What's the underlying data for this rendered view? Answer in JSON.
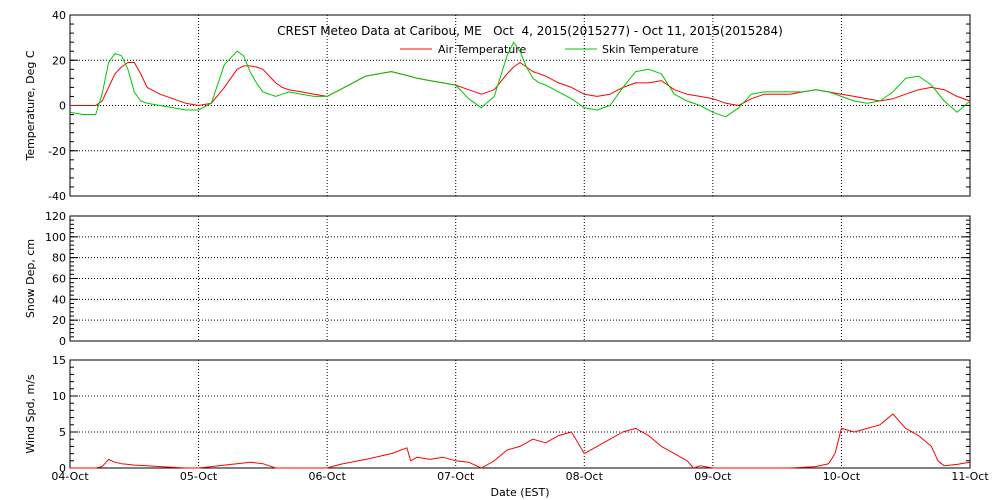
{
  "chart_data": [
    {
      "type": "line",
      "title": "CREST Meteo Data at Caribou, ME   Oct  4, 2015(2015277) - Oct 11, 2015(2015284)",
      "xlabel": "",
      "ylabel": "Temperature, Deg C",
      "ylim": [
        -40,
        40
      ],
      "yticks": [
        "-40",
        "-20",
        "0",
        "20",
        "40"
      ],
      "grid": true,
      "legend": "top-center",
      "series": [
        {
          "name": "Air Temperature",
          "color": "#ff0000",
          "x": [
            0,
            0.1,
            0.2,
            0.25,
            0.3,
            0.35,
            0.4,
            0.45,
            0.5,
            0.55,
            0.6,
            0.7,
            0.8,
            0.9,
            1.0,
            1.1,
            1.2,
            1.3,
            1.35,
            1.4,
            1.45,
            1.5,
            1.55,
            1.6,
            1.65,
            1.7,
            1.8,
            1.9,
            2.0,
            2.1,
            2.2,
            2.3,
            2.5,
            2.64,
            2.7,
            2.8,
            2.9,
            3.0,
            3.1,
            3.2,
            3.3,
            3.4,
            3.45,
            3.5,
            3.55,
            3.6,
            3.65,
            3.7,
            3.8,
            3.9,
            4.0,
            4.1,
            4.2,
            4.3,
            4.4,
            4.5,
            4.6,
            4.7,
            4.8,
            4.9,
            5.0,
            5.1,
            5.2,
            5.3,
            5.4,
            5.5,
            5.6,
            5.7,
            5.8,
            5.9,
            6.0,
            6.1,
            6.2,
            6.3,
            6.4,
            6.5,
            6.6,
            6.7,
            6.8,
            6.9,
            7.0
          ],
          "y": [
            0,
            0,
            0,
            2,
            8,
            14,
            17,
            19,
            19,
            14,
            8,
            5,
            3,
            1,
            0,
            1,
            8,
            16,
            17.5,
            17.5,
            17,
            16,
            13,
            10,
            8,
            7,
            6,
            5,
            4,
            7,
            10,
            13,
            15,
            13,
            12,
            11,
            10,
            9,
            7,
            5,
            7,
            14,
            17,
            19,
            17,
            15,
            14,
            13,
            10,
            8,
            5,
            4,
            5,
            8,
            10,
            10,
            11,
            7,
            5,
            4,
            3,
            1,
            0,
            3,
            5,
            5,
            5,
            6,
            7,
            6,
            5,
            4,
            3,
            2,
            3,
            5,
            7,
            8,
            7,
            4,
            2
          ]
        },
        {
          "name": "Skin Temperature",
          "color": "#00c800",
          "x": [
            0,
            0.1,
            0.2,
            0.25,
            0.3,
            0.35,
            0.4,
            0.45,
            0.5,
            0.55,
            0.6,
            0.7,
            0.8,
            0.9,
            1.0,
            1.1,
            1.2,
            1.3,
            1.35,
            1.4,
            1.45,
            1.5,
            1.55,
            1.6,
            1.65,
            1.7,
            1.8,
            1.9,
            2.0,
            2.1,
            2.2,
            2.3,
            2.5,
            2.64,
            2.7,
            2.8,
            2.9,
            3.0,
            3.1,
            3.2,
            3.3,
            3.4,
            3.45,
            3.5,
            3.55,
            3.6,
            3.65,
            3.7,
            3.8,
            3.9,
            4.0,
            4.1,
            4.2,
            4.3,
            4.4,
            4.5,
            4.6,
            4.7,
            4.8,
            4.9,
            5.0,
            5.1,
            5.2,
            5.3,
            5.4,
            5.5,
            5.6,
            5.7,
            5.8,
            5.9,
            6.0,
            6.1,
            6.2,
            6.3,
            6.4,
            6.5,
            6.6,
            6.7,
            6.8,
            6.9,
            7.0
          ],
          "y": [
            -3,
            -4,
            -4,
            5,
            19,
            23,
            22,
            16,
            6,
            2,
            1,
            0,
            -1,
            -2,
            -2,
            1,
            18,
            24,
            22,
            15,
            10,
            6,
            5,
            4,
            5,
            6,
            5,
            4,
            4,
            7,
            10,
            13,
            15,
            13,
            12,
            11,
            10,
            9,
            3,
            -1,
            4,
            22,
            28,
            24,
            17,
            12,
            10,
            9,
            6,
            3,
            -1,
            -2,
            0,
            8,
            15,
            16,
            14,
            5,
            2,
            0,
            -3,
            -5,
            -1,
            5,
            6,
            6,
            6,
            6,
            7,
            6,
            4,
            2,
            1,
            2,
            6,
            12,
            13,
            9,
            2,
            -3,
            2
          ]
        }
      ]
    },
    {
      "type": "line",
      "title": "",
      "xlabel": "",
      "ylabel": "Snow Dep, cm",
      "ylim": [
        0,
        120
      ],
      "yticks": [
        "0",
        "20",
        "40",
        "60",
        "80",
        "100",
        "120"
      ],
      "grid": true,
      "series": []
    },
    {
      "type": "line",
      "title": "",
      "xlabel": "Date (EST)",
      "ylabel": "Wind Spd, m/s",
      "ylim": [
        0,
        15
      ],
      "yticks": [
        "0",
        "5",
        "10",
        "15"
      ],
      "xticks": [
        "04-Oct",
        "05-Oct",
        "06-Oct",
        "07-Oct",
        "08-Oct",
        "09-Oct",
        "10-Oct",
        "11-Oct"
      ],
      "grid": true,
      "series": [
        {
          "name": "",
          "color": "#ff0000",
          "x": [
            0,
            0.1,
            0.2,
            0.25,
            0.3,
            0.35,
            0.4,
            0.5,
            0.6,
            0.7,
            0.8,
            0.9,
            1.0,
            1.1,
            1.2,
            1.3,
            1.4,
            1.5,
            1.55,
            1.6,
            1.7,
            1.8,
            2.0,
            2.1,
            2.3,
            2.5,
            2.62,
            2.65,
            2.7,
            2.8,
            2.9,
            3.0,
            3.1,
            3.2,
            3.3,
            3.4,
            3.5,
            3.6,
            3.7,
            3.8,
            3.9,
            3.95,
            4.0,
            4.1,
            4.2,
            4.3,
            4.4,
            4.5,
            4.6,
            4.7,
            4.8,
            4.85,
            4.9,
            5.0,
            5.2,
            5.4,
            5.6,
            5.8,
            5.9,
            5.95,
            6.0,
            6.1,
            6.2,
            6.3,
            6.4,
            6.5,
            6.6,
            6.7,
            6.75,
            6.8,
            6.9,
            7.0
          ],
          "y": [
            0,
            0,
            0,
            0.2,
            1.2,
            0.8,
            0.6,
            0.4,
            0.3,
            0.2,
            0.1,
            0,
            0,
            0.2,
            0.4,
            0.6,
            0.8,
            0.6,
            0.3,
            0,
            0,
            0,
            0,
            0.5,
            1.2,
            2.0,
            2.8,
            1.0,
            1.5,
            1.2,
            1.5,
            1.0,
            0.8,
            0,
            1.0,
            2.5,
            3.0,
            4.0,
            3.5,
            4.5,
            5.0,
            3.5,
            2.0,
            3.0,
            4.0,
            5.0,
            5.5,
            4.5,
            3.0,
            2.0,
            1.0,
            0,
            0.3,
            0,
            0,
            0,
            0,
            0.2,
            0.6,
            2.0,
            5.5,
            5.0,
            5.5,
            6.0,
            7.5,
            5.5,
            4.5,
            3.0,
            1.0,
            0.3,
            0.5,
            0.8
          ]
        }
      ]
    }
  ]
}
